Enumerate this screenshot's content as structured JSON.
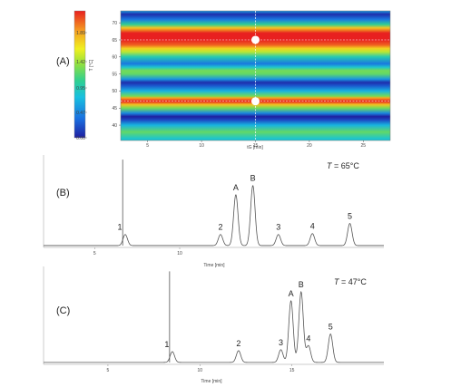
{
  "chart_data": [
    {
      "id": "A",
      "type": "heatmap",
      "panel_label": "(A)",
      "xlabel": "tG [min]",
      "ylabel": "T [°C]",
      "xlim": [
        2.5,
        27.5
      ],
      "ylim": [
        35.5,
        73.5
      ],
      "xticks": [
        5,
        10,
        15,
        20,
        25
      ],
      "yticks": [
        40,
        45,
        50,
        55,
        60,
        65,
        70
      ],
      "colorbar": {
        "ticks": [
          "1.89",
          "1.42",
          "0.95",
          "0.47",
          "0.00"
        ],
        "values": [
          1.89,
          1.42,
          0.95,
          0.47,
          0.0
        ],
        "colors": [
          "#1f1fa0",
          "#1a6fe0",
          "#18c0e0",
          "#30d090",
          "#90e040",
          "#f0f020",
          "#f5a020",
          "#e82020"
        ]
      },
      "crosshair": {
        "tG": 15,
        "T": [
          65,
          47
        ]
      },
      "row_profile": {
        "T": [
          36,
          38,
          40,
          41.5,
          42.5,
          43.5,
          45,
          46,
          47,
          48,
          48.5,
          50,
          51.5,
          52.5,
          53.5,
          55,
          56,
          57,
          58,
          60,
          61.5,
          62.5,
          63.5,
          65,
          67,
          68.5,
          69.5,
          71,
          72.5,
          73.5
        ],
        "resolution": [
          0.6,
          0.95,
          0.5,
          0.15,
          0.0,
          0.35,
          1.0,
          1.5,
          1.95,
          1.6,
          1.0,
          0.5,
          0.2,
          0.05,
          0.4,
          0.95,
          1.0,
          0.6,
          0.3,
          0.7,
          1.2,
          1.45,
          1.75,
          1.95,
          1.95,
          1.5,
          0.8,
          0.3,
          0.05,
          0.4
        ]
      }
    },
    {
      "id": "B",
      "type": "line",
      "panel_label": "(B)",
      "annotation": {
        "var": "T",
        "text": " = 65°C"
      },
      "xlabel": "Time [min]",
      "xlim": [
        2,
        22
      ],
      "xticks": [
        5,
        10
      ],
      "baseline_y": 2,
      "ylim": [
        0,
        100
      ],
      "injection": {
        "x": 6.65,
        "height": 95
      },
      "peaks": [
        {
          "label": "1",
          "x": 6.8,
          "height": 12,
          "width": 0.13
        },
        {
          "label": "2",
          "x": 12.4,
          "height": 12,
          "width": 0.13
        },
        {
          "label": "A",
          "x": 13.3,
          "height": 55,
          "width": 0.13
        },
        {
          "label": "B",
          "x": 14.3,
          "height": 65,
          "width": 0.13
        },
        {
          "label": "3",
          "x": 15.8,
          "height": 12,
          "width": 0.13
        },
        {
          "label": "4",
          "x": 17.8,
          "height": 13,
          "width": 0.13
        },
        {
          "label": "5",
          "x": 20.0,
          "height": 24,
          "width": 0.13
        }
      ]
    },
    {
      "id": "C",
      "type": "line",
      "panel_label": "(C)",
      "annotation": {
        "var": "T",
        "text": " = 47°C"
      },
      "xlabel": "Time [min]",
      "xlim": [
        1.5,
        20
      ],
      "xticks": [
        5,
        10,
        15
      ],
      "baseline_y": 2,
      "ylim": [
        0,
        100
      ],
      "injection": {
        "x": 8.35,
        "height": 95
      },
      "peaks": [
        {
          "label": "1",
          "x": 8.5,
          "height": 11,
          "width": 0.12
        },
        {
          "label": "2",
          "x": 12.1,
          "height": 12,
          "width": 0.12
        },
        {
          "label": "3",
          "x": 14.4,
          "height": 13,
          "width": 0.12
        },
        {
          "label": "A",
          "x": 14.95,
          "height": 63,
          "width": 0.12
        },
        {
          "label": "B",
          "x": 15.5,
          "height": 72,
          "width": 0.12
        },
        {
          "label": "4",
          "x": 15.9,
          "height": 17,
          "width": 0.12
        },
        {
          "label": "5",
          "x": 17.1,
          "height": 29,
          "width": 0.12
        }
      ]
    }
  ]
}
